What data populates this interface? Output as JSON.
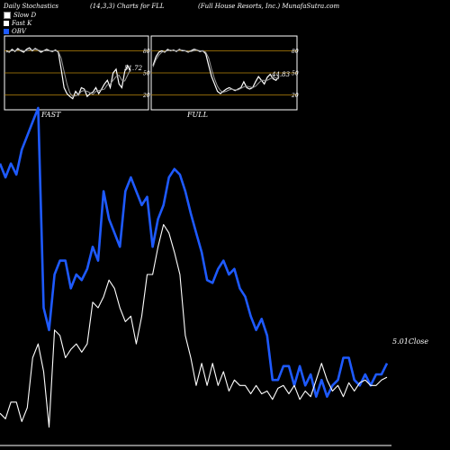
{
  "header": {
    "left": "Daily Stochastics",
    "center": "(14,3,3) Charts for FLL",
    "right": "(Full House  Resorts, Inc.) MunafaSutra.com"
  },
  "legend": [
    {
      "label": "Slow  D",
      "color": "#ffffff",
      "border": "#888888"
    },
    {
      "label": "Fast K",
      "color": "#ffffff",
      "border": "#ffffff"
    },
    {
      "label": "OBV",
      "color": "#1e5aff",
      "border": "#1e5aff"
    }
  ],
  "colors": {
    "obv": "#1e5aff",
    "close": "#ffffff",
    "band": "#b8860b"
  },
  "chart_data": [
    {
      "type": "line",
      "title": "FAST",
      "ylim": [
        0,
        100
      ],
      "yticks": [
        20,
        50,
        80
      ],
      "last_value_label": "51.72",
      "series": [
        {
          "name": "Fast K",
          "values": [
            80,
            78,
            82,
            79,
            83,
            80,
            78,
            82,
            84,
            80,
            83,
            81,
            78,
            80,
            82,
            80,
            79,
            81,
            78,
            55,
            30,
            22,
            18,
            15,
            25,
            20,
            30,
            28,
            18,
            22,
            24,
            30,
            22,
            28,
            35,
            40,
            30,
            50,
            55,
            35,
            30,
            52,
            60,
            52
          ]
        },
        {
          "name": "Slow D",
          "values": [
            78,
            79,
            80,
            80,
            81,
            81,
            80,
            80,
            81,
            81,
            82,
            81,
            80,
            80,
            80,
            80,
            80,
            80,
            79,
            70,
            52,
            35,
            23,
            18,
            19,
            20,
            25,
            26,
            25,
            23,
            21,
            25,
            26,
            27,
            28,
            34,
            35,
            40,
            45,
            47,
            40,
            39,
            47,
            55
          ]
        }
      ]
    },
    {
      "type": "line",
      "title": "FULL",
      "ylim": [
        0,
        100
      ],
      "yticks": [
        20,
        50,
        80
      ],
      "last_value_label": "44.83",
      "series": [
        {
          "name": "Full K",
          "values": [
            60,
            72,
            78,
            80,
            78,
            82,
            80,
            81,
            79,
            82,
            80,
            80,
            78,
            80,
            82,
            81,
            79,
            80,
            76,
            60,
            45,
            35,
            25,
            22,
            25,
            28,
            30,
            28,
            26,
            28,
            30,
            38,
            30,
            28,
            30,
            38,
            45,
            40,
            35,
            44,
            48,
            42,
            40,
            45
          ]
        },
        {
          "name": "Full D",
          "values": [
            58,
            68,
            74,
            78,
            79,
            80,
            81,
            80,
            80,
            81,
            81,
            80,
            79,
            79,
            80,
            81,
            80,
            80,
            78,
            70,
            55,
            42,
            32,
            26,
            24,
            25,
            27,
            28,
            27,
            27,
            29,
            31,
            32,
            31,
            30,
            32,
            36,
            40,
            40,
            40,
            42,
            44,
            43,
            42
          ]
        }
      ]
    },
    {
      "type": "line",
      "title": "",
      "last_value_label": "5.01Close",
      "series": [
        {
          "name": "OBV",
          "values": [
            100,
            95,
            100,
            96,
            105,
            110,
            115,
            120,
            48,
            40,
            60,
            65,
            65,
            55,
            60,
            58,
            62,
            70,
            65,
            90,
            80,
            75,
            70,
            90,
            95,
            90,
            85,
            88,
            70,
            80,
            85,
            95,
            98,
            96,
            90,
            82,
            75,
            68,
            58,
            57,
            62,
            65,
            60,
            62,
            55,
            52,
            45,
            40,
            44,
            38,
            22,
            22,
            27,
            27,
            20,
            27,
            20,
            24,
            16,
            22,
            16,
            20,
            22,
            30,
            30,
            22,
            20,
            24,
            20,
            24,
            24,
            28
          ]
        },
        {
          "name": "Close",
          "values": [
            10,
            8,
            14,
            14,
            7,
            12,
            30,
            35,
            25,
            5,
            40,
            38,
            30,
            33,
            35,
            32,
            35,
            50,
            48,
            52,
            58,
            55,
            48,
            43,
            45,
            35,
            45,
            60,
            60,
            70,
            78,
            75,
            68,
            60,
            38,
            30,
            20,
            28,
            20,
            28,
            20,
            25,
            18,
            22,
            20,
            20,
            17,
            20,
            17,
            18,
            15,
            19,
            20,
            17,
            20,
            15,
            18,
            16,
            22,
            28,
            22,
            18,
            20,
            16,
            21,
            18,
            21,
            22,
            20,
            20,
            22,
            23
          ]
        }
      ]
    }
  ]
}
